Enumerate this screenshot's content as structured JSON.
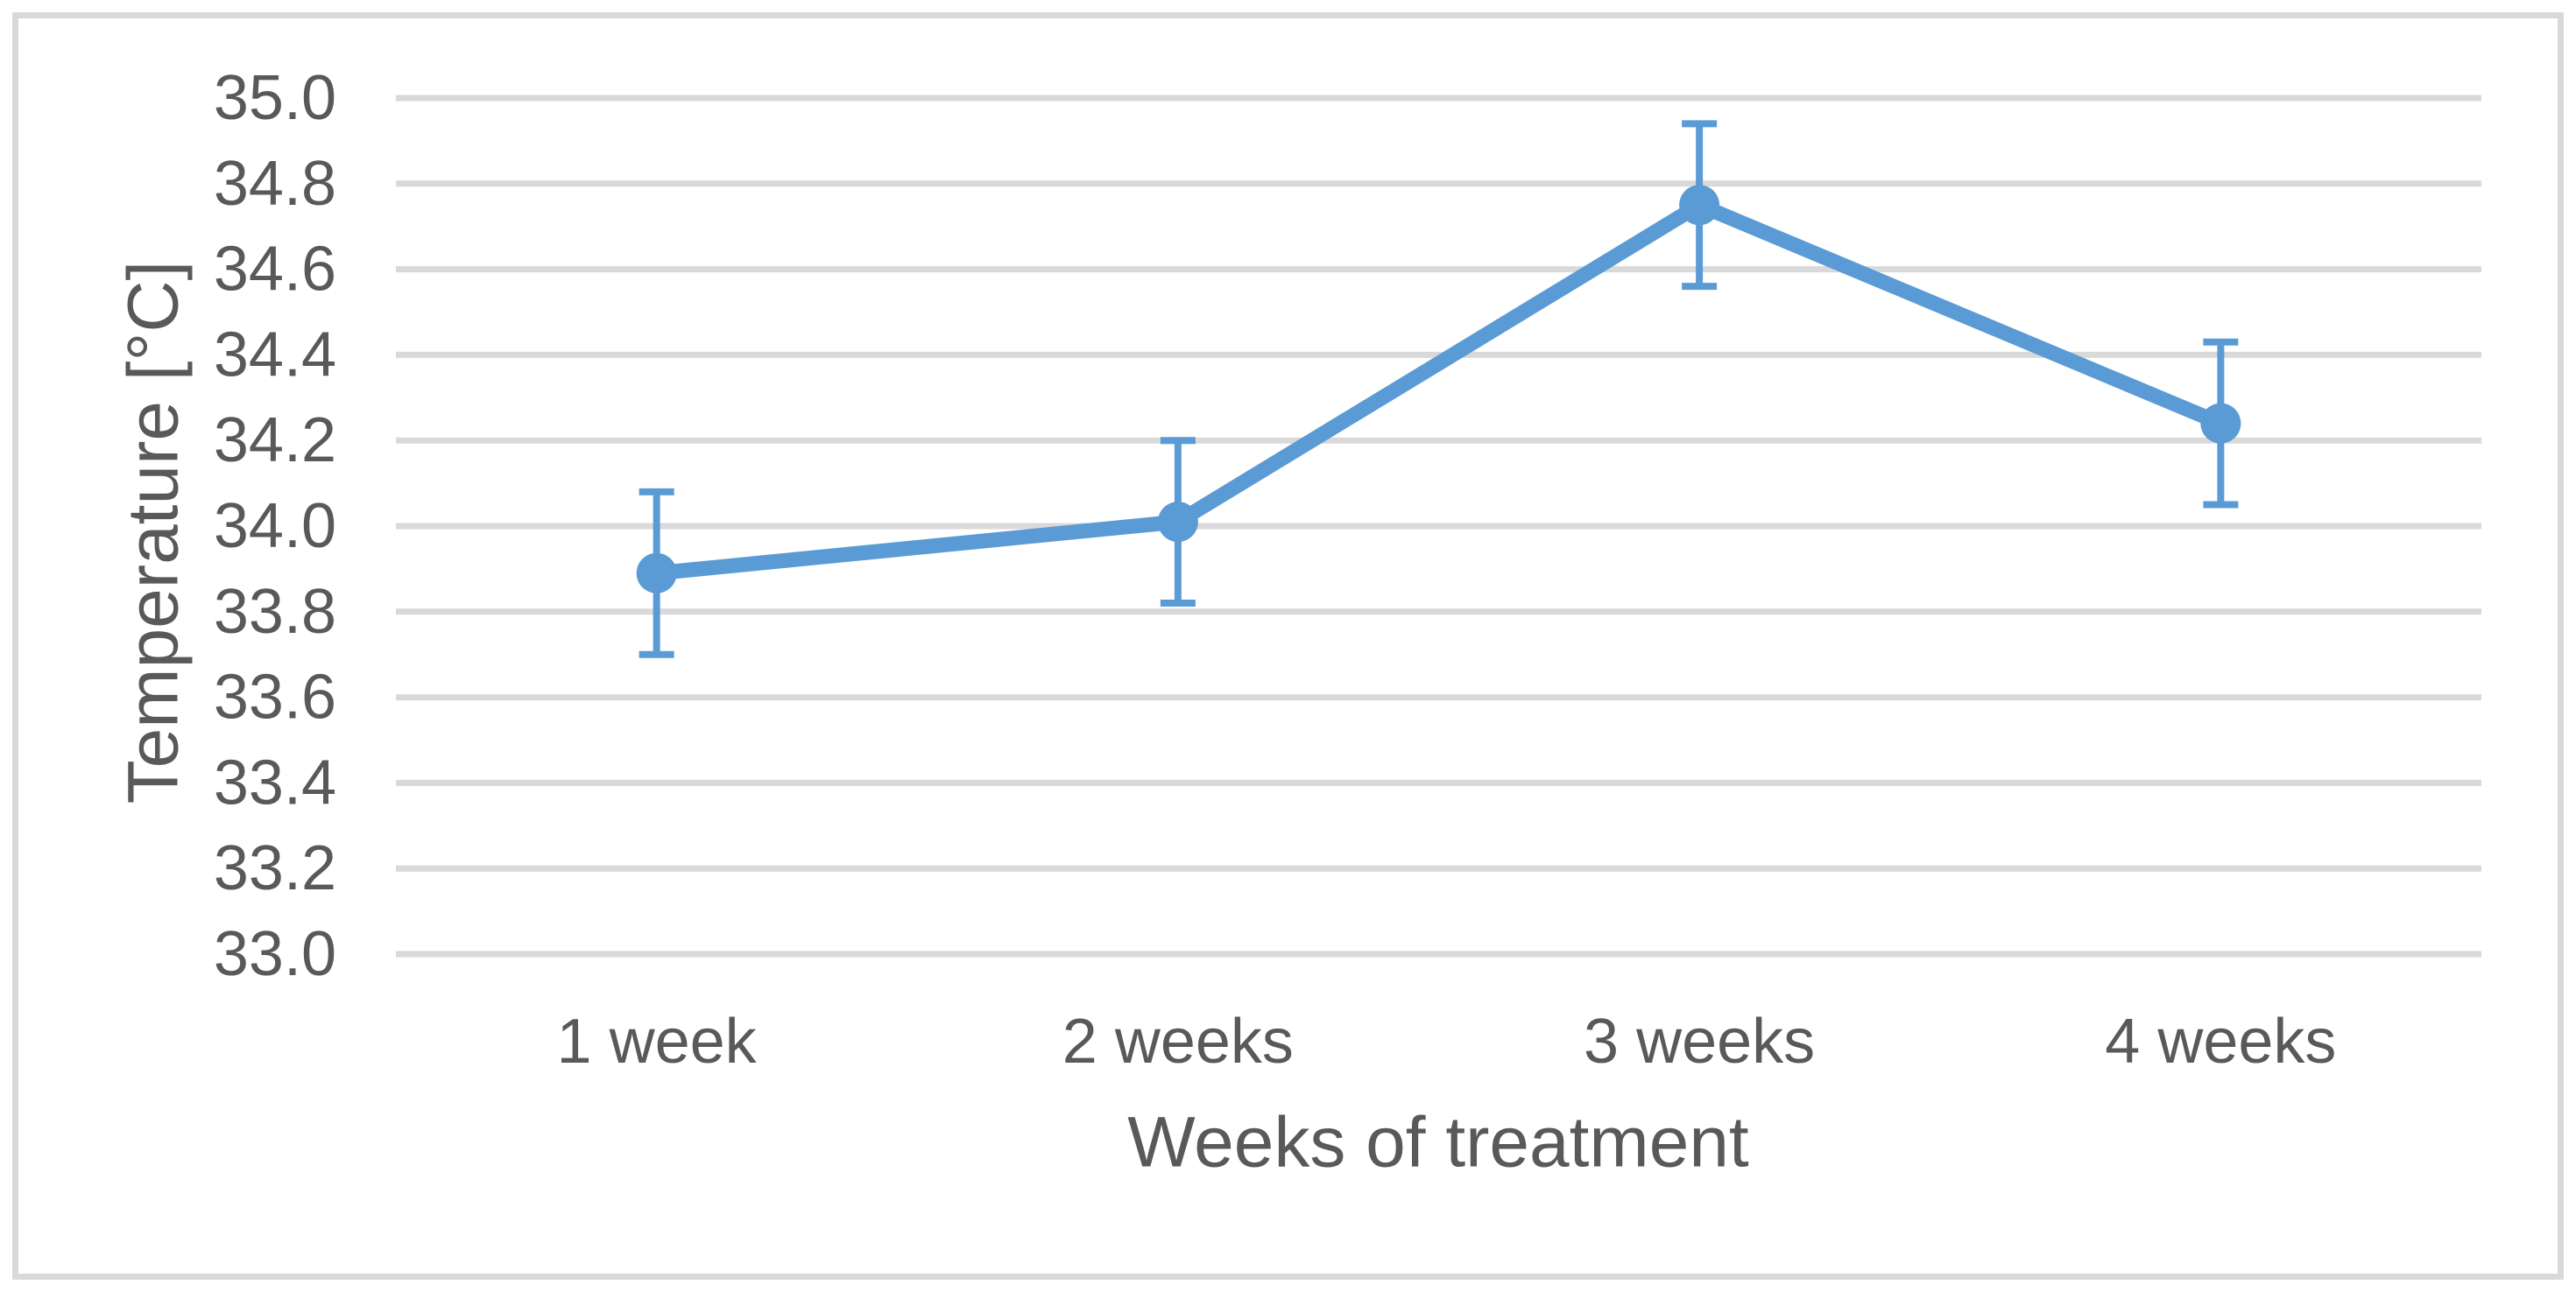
{
  "chart_data": {
    "type": "line",
    "title": "",
    "categories": [
      "1 week",
      "2 weeks",
      "3 weeks",
      "4 weeks"
    ],
    "series": [
      {
        "name": "Temperature",
        "values": [
          33.89,
          34.01,
          34.75,
          34.24
        ],
        "error_plus": [
          0.19,
          0.19,
          0.19,
          0.19
        ],
        "error_minus": [
          0.19,
          0.19,
          0.19,
          0.19
        ],
        "error_bar_ranges": [
          [
            33.7,
            34.08
          ],
          [
            33.82,
            34.2
          ],
          [
            34.56,
            34.94
          ],
          [
            34.05,
            34.43
          ]
        ],
        "color": "#5b9bd5",
        "marker": "circle"
      }
    ],
    "xlabel": "Weeks of treatment",
    "ylabel": "Temperature [°C]",
    "ylim": [
      33.0,
      35.0
    ],
    "ytick_step": 0.2,
    "ytick_labels": [
      "35.0",
      "34.8",
      "34.6",
      "34.4",
      "34.2",
      "34.0",
      "33.8",
      "33.6",
      "33.4",
      "33.2",
      "33.0"
    ],
    "grid": "horizontal-major",
    "legend_position": "none"
  },
  "style": {
    "background": "#ffffff",
    "border_color": "#d9d9d9",
    "gridline_color": "#d9d9d9",
    "text_color": "#595959",
    "accent_blue": "#5b9bd5"
  }
}
